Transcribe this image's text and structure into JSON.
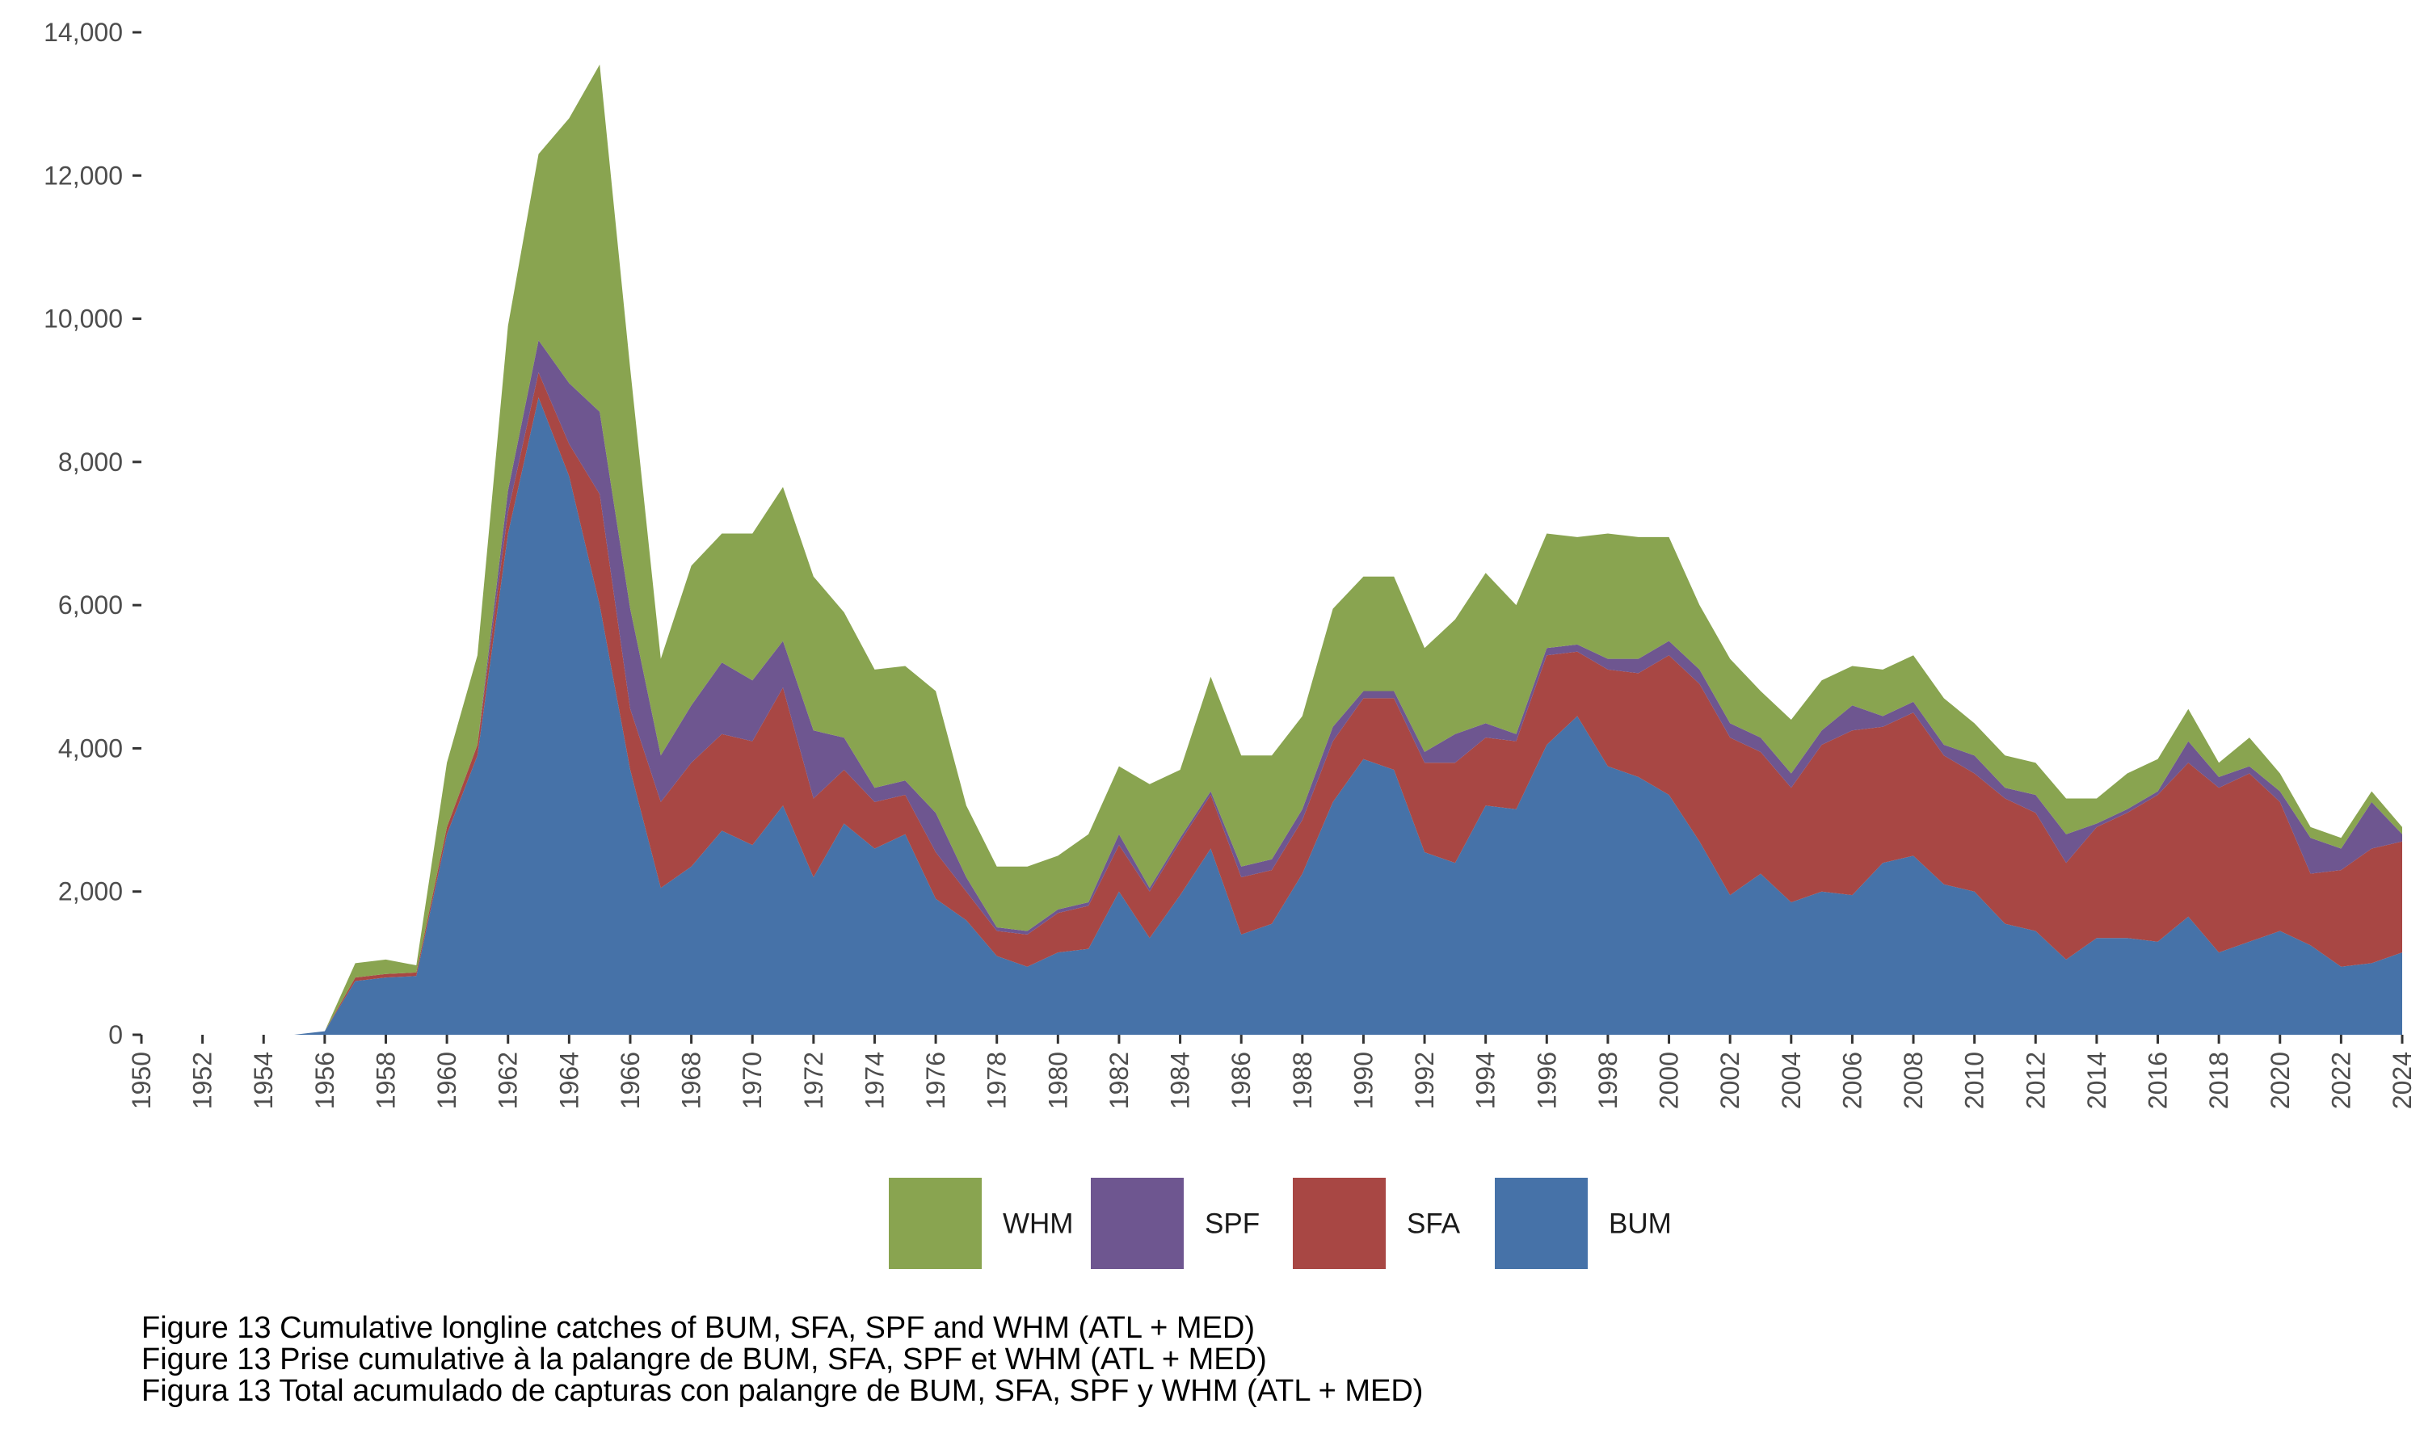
{
  "captions": [
    "Figure 13 Cumulative longline catches of BUM, SFA, SPF and WHM (ATL + MED)",
    "Figure 13 Prise cumulative à la palangre de BUM, SFA, SPF et WHM (ATL + MED)",
    "Figura 13 Total acumulado de capturas con palangre de BUM, SFA, SPF y WHM (ATL + MED)"
  ],
  "chart_data": {
    "type": "area",
    "stacked": true,
    "grid": false,
    "legend_position": "bottom",
    "x": [
      1950,
      1951,
      1952,
      1953,
      1954,
      1955,
      1956,
      1957,
      1958,
      1959,
      1960,
      1961,
      1962,
      1963,
      1964,
      1965,
      1966,
      1967,
      1968,
      1969,
      1970,
      1971,
      1972,
      1973,
      1974,
      1975,
      1976,
      1977,
      1978,
      1979,
      1980,
      1981,
      1982,
      1983,
      1984,
      1985,
      1986,
      1987,
      1988,
      1989,
      1990,
      1991,
      1992,
      1993,
      1994,
      1995,
      1996,
      1997,
      1998,
      1999,
      2000,
      2001,
      2002,
      2003,
      2004,
      2005,
      2006,
      2007,
      2008,
      2009,
      2010,
      2011,
      2012,
      2013,
      2014,
      2015,
      2016,
      2017,
      2018,
      2019,
      2020,
      2021,
      2022,
      2023,
      2024
    ],
    "xlim": [
      1950,
      2024
    ],
    "x_ticks": [
      "1950",
      "1952",
      "1954",
      "1956",
      "1958",
      "1960",
      "1962",
      "1964",
      "1966",
      "1968",
      "1970",
      "1972",
      "1974",
      "1976",
      "1978",
      "1980",
      "1982",
      "1984",
      "1986",
      "1988",
      "1990",
      "1992",
      "1994",
      "1996",
      "1998",
      "2000",
      "2002",
      "2004",
      "2006",
      "2008",
      "2010",
      "2012",
      "2014",
      "2016",
      "2018",
      "2020",
      "2022",
      "2024"
    ],
    "ylim": [
      0,
      14000
    ],
    "y_ticks": [
      "0",
      "2,000",
      "4,000",
      "6,000",
      "8,000",
      "10,000",
      "12,000",
      "14,000"
    ],
    "series": [
      {
        "name": "BUM",
        "color": "#4672A8",
        "values": [
          0,
          0,
          0,
          0,
          0,
          0,
          50,
          750,
          800,
          820,
          2800,
          3900,
          7000,
          8900,
          7800,
          6000,
          3700,
          2050,
          2350,
          2850,
          2650,
          3200,
          2200,
          2950,
          2600,
          2800,
          1900,
          1600,
          1100,
          950,
          1150,
          1200,
          2000,
          1350,
          1950,
          2600,
          1400,
          1550,
          2250,
          3250,
          3850,
          3700,
          2550,
          2400,
          3200,
          3150,
          4050,
          4450,
          3750,
          3600,
          3350,
          2700,
          1950,
          2250,
          1850,
          2000,
          1950,
          2400,
          2500,
          2100,
          2000,
          1550,
          1450,
          1050,
          1350,
          1350,
          1300,
          1650,
          1150,
          1300,
          1450,
          1250,
          950,
          1000,
          1150
        ]
      },
      {
        "name": "SFA",
        "color": "#A84744",
        "values": [
          0,
          0,
          0,
          0,
          0,
          0,
          0,
          50,
          50,
          50,
          100,
          150,
          300,
          350,
          450,
          1550,
          850,
          1200,
          1450,
          1350,
          1450,
          1650,
          1100,
          750,
          650,
          550,
          650,
          400,
          350,
          450,
          550,
          600,
          650,
          650,
          750,
          750,
          800,
          750,
          750,
          850,
          850,
          1000,
          1250,
          1400,
          950,
          950,
          1250,
          900,
          1350,
          1450,
          1950,
          2200,
          2200,
          1700,
          1600,
          2050,
          2300,
          1900,
          2000,
          1800,
          1650,
          1750,
          1650,
          1350,
          1550,
          1750,
          2050,
          2150,
          2300,
          2350,
          1800,
          1000,
          1350,
          1600,
          1550
        ]
      },
      {
        "name": "SPF",
        "color": "#6E5690",
        "values": [
          0,
          0,
          0,
          0,
          0,
          0,
          0,
          0,
          0,
          0,
          0,
          0,
          300,
          450,
          850,
          1150,
          1400,
          650,
          800,
          1000,
          850,
          650,
          950,
          450,
          200,
          200,
          550,
          200,
          50,
          50,
          50,
          50,
          150,
          50,
          50,
          50,
          150,
          150,
          150,
          200,
          100,
          100,
          150,
          400,
          200,
          100,
          100,
          100,
          150,
          200,
          200,
          200,
          200,
          200,
          200,
          200,
          350,
          150,
          150,
          150,
          250,
          150,
          250,
          400,
          50,
          50,
          50,
          300,
          150,
          100,
          150,
          500,
          300,
          650,
          100
        ]
      },
      {
        "name": "WHM",
        "color": "#89A450",
        "values": [
          0,
          0,
          0,
          0,
          0,
          0,
          0,
          200,
          200,
          100,
          900,
          1250,
          2300,
          2600,
          3700,
          4850,
          3350,
          1350,
          1950,
          1800,
          2050,
          2150,
          2150,
          1750,
          1650,
          1600,
          1700,
          1000,
          850,
          900,
          750,
          950,
          950,
          1450,
          950,
          1600,
          1550,
          1450,
          1300,
          1650,
          1600,
          1600,
          1450,
          1600,
          2100,
          1800,
          1600,
          1500,
          1750,
          1700,
          1450,
          900,
          900,
          650,
          750,
          700,
          550,
          650,
          650,
          650,
          450,
          450,
          450,
          500,
          350,
          500,
          450,
          450,
          200,
          400,
          250,
          150,
          150,
          150,
          100
        ]
      }
    ]
  }
}
